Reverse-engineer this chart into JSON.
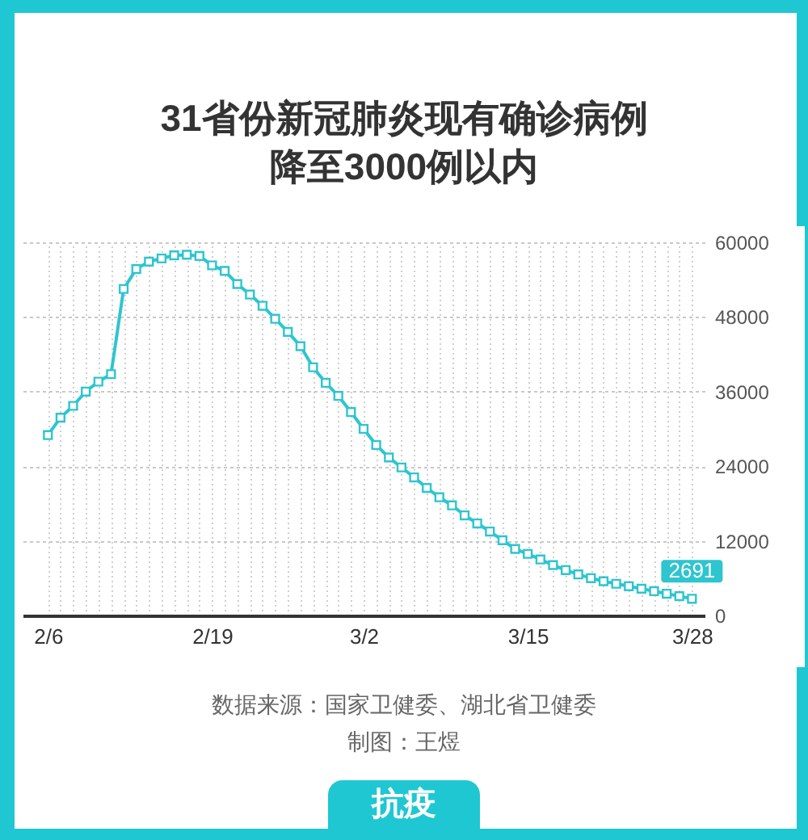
{
  "chart_data": {
    "type": "line",
    "title": "31省份新冠肺炎现有确诊病例降至3000例以内",
    "annotations": [
      "数据来源：国家卫健委、湖北省卫健委",
      "制图：王煜",
      "抗疫"
    ],
    "x": [
      "--02-06",
      "--02-07",
      "--02-08",
      "--02-09",
      "--02-10",
      "--02-11",
      "--02-12",
      "--02-13",
      "--02-14",
      "--02-15",
      "--02-16",
      "--02-17",
      "--02-18",
      "--02-19",
      "--02-20",
      "--02-21",
      "--02-22",
      "--02-23",
      "--02-24",
      "--02-25",
      "--02-26",
      "--02-27",
      "--02-28",
      "--02-29",
      "--03-01",
      "--03-02",
      "--03-03",
      "--03-04",
      "--03-05",
      "--03-06",
      "--03-07",
      "--03-08",
      "--03-09",
      "--03-10",
      "--03-11",
      "--03-12",
      "--03-13",
      "--03-14",
      "--03-15",
      "--03-16",
      "--03-17",
      "--03-18",
      "--03-19",
      "--03-20",
      "--03-21",
      "--03-22",
      "--03-23",
      "--03-24",
      "--03-25",
      "--03-26",
      "--03-27",
      "--03-28"
    ],
    "values": [
      29000,
      31800,
      33700,
      36000,
      37600,
      38800,
      52500,
      55700,
      56900,
      57400,
      57900,
      58000,
      57800,
      56300,
      55400,
      53300,
      51600,
      49800,
      47700,
      45600,
      43300,
      39900,
      37400,
      35300,
      32700,
      30000,
      27400,
      25400,
      23800,
      22200,
      20500,
      19000,
      17700,
      16100,
      14800,
      13500,
      12100,
      10700,
      9900,
      9000,
      8100,
      7300,
      6600,
      6000,
      5500,
      5100,
      4700,
      4300,
      3900,
      3500,
      3100,
      2691
    ],
    "value_labels": [
      null,
      null,
      null,
      null,
      null,
      null,
      null,
      null,
      null,
      null,
      null,
      null,
      null,
      null,
      null,
      null,
      null,
      null,
      null,
      null,
      null,
      null,
      null,
      null,
      null,
      null,
      null,
      null,
      null,
      null,
      null,
      null,
      null,
      null,
      null,
      null,
      null,
      null,
      null,
      null,
      null,
      null,
      null,
      null,
      null,
      null,
      null,
      null,
      null,
      null,
      null,
      "2691"
    ],
    "color": "#2ec5cf",
    "marker": "square",
    "line_style": "solid",
    "grid": true,
    "xlim": [
      "--02-04",
      "--03-29"
    ],
    "xticks": [
      {
        "value": "--02-06",
        "label": "2/6"
      },
      {
        "value": "--02-19",
        "label": "2/19"
      },
      {
        "value": "--03-02",
        "label": "3/2"
      },
      {
        "value": "--03-15",
        "label": "3/15"
      },
      {
        "value": "--03-28",
        "label": "3/28"
      }
    ],
    "ylim": [
      0,
      60000
    ],
    "yticks": [
      0,
      12000,
      24000,
      36000,
      48000,
      60000
    ]
  }
}
